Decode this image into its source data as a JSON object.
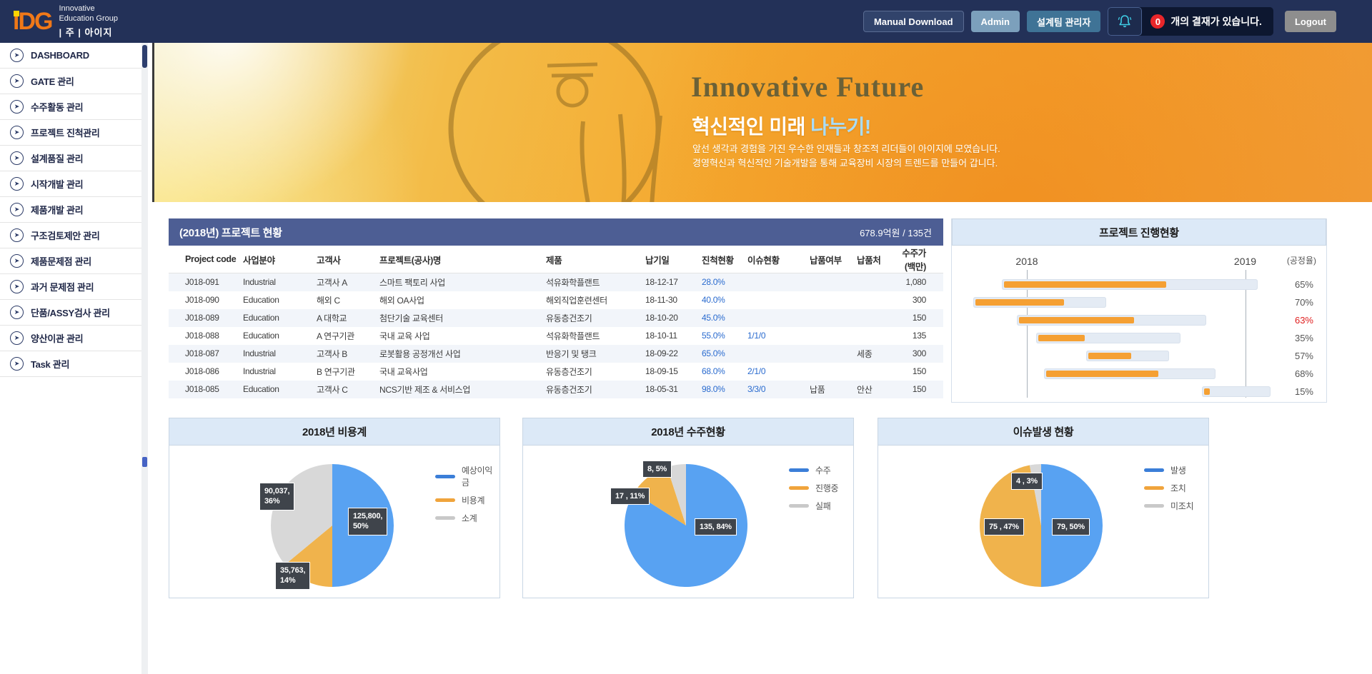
{
  "header": {
    "logo": {
      "text": "iDG",
      "sub1": "Innovative",
      "sub2": "Education Group",
      "sub3": "| 주 | 아이지"
    },
    "buttons": {
      "manual_download": "Manual Download",
      "admin": "Admin",
      "design_team": "설계팀 관리자",
      "logout": "Logout"
    },
    "notification": {
      "count": "0",
      "text": "개의 결재가 있습니다."
    }
  },
  "sidebar": {
    "items": [
      "DASHBOARD",
      "GATE 관리",
      "수주활동 관리",
      "프로젝트 진척관리",
      "설계품질 관리",
      "시작개발 관리",
      "제품개발 관리",
      "구조검토제안 관리",
      "제품문제점 관리",
      "과거 문제점 관리",
      "단품/ASSY검사 관리",
      "양산이관 관리",
      "Task 관리"
    ]
  },
  "banner": {
    "title": "Innovative Future",
    "subtitle_main": "혁신적인 미래 ",
    "subtitle_accent": "나누기!",
    "line1": "앞선 생각과 경험을 가진 우수한 인재들과 창조적 리더들이 아이지에 모였습니다.",
    "line2": "경영혁신과 혁신적인 기술개발을 통해 교육장비 시장의 트렌드를 만들어 갑니다."
  },
  "project_table": {
    "title": "(2018년) 프로젝트 현황",
    "summary": "678.9억원 / 135건",
    "columns": [
      "Project code",
      "사업분야",
      "고객사",
      "프로젝트(공사)명",
      "제품",
      "납기일",
      "진척현황",
      "이슈현황",
      "납품여부",
      "납품처",
      "수주가(백만)"
    ],
    "rows": [
      [
        "J018-091",
        "Industrial",
        "고객사 A",
        "스마트 팩토리 사업",
        "석유화학플랜트",
        "18-12-17",
        "28.0%",
        "",
        "",
        "",
        "1,080"
      ],
      [
        "J018-090",
        "Education",
        "해외 C",
        "해외 OA사업",
        "해외직업훈련센터",
        "18-11-30",
        "40.0%",
        "",
        "",
        "",
        "300"
      ],
      [
        "J018-089",
        "Education",
        "A 대학교",
        "첨단기술 교육센터",
        "유동층건조기",
        "18-10-20",
        "45.0%",
        "",
        "",
        "",
        "150"
      ],
      [
        "J018-088",
        "Education",
        "A 연구기관",
        "국내 교육 사업",
        "석유화학플랜트",
        "18-10-11",
        "55.0%",
        "1/1/0",
        "",
        "",
        "135"
      ],
      [
        "J018-087",
        "Industrial",
        "고객사 B",
        "로봇활용 공정개선 사업",
        "반응기 및 탱크",
        "18-09-22",
        "65.0%",
        "",
        "",
        "세종",
        "300"
      ],
      [
        "J018-086",
        "Industrial",
        "B 연구기관",
        "국내 교육사업",
        "유동층건조기",
        "18-09-15",
        "68.0%",
        "2/1/0",
        "",
        "",
        "150"
      ],
      [
        "J018-085",
        "Education",
        "고객사 C",
        "NCS기반 제조 & 서비스업",
        "유동층건조기",
        "18-05-31",
        "98.0%",
        "3/3/0",
        "납품",
        "안산",
        "150"
      ]
    ]
  },
  "colors": {
    "header_navy": "#233158",
    "table_header_bg": "#4d5e94",
    "panel_title_bg": "#dce9f7",
    "gantt_bar": "#f5a033",
    "gantt_track": "#e4ebf4",
    "progress_text_blue": "#2a6bcf",
    "alert_red": "#e02020",
    "pie_slices": [
      "#58a2f2",
      "#f0b34c",
      "#d8d8d8"
    ],
    "legend_marks": [
      "#3b7ed8",
      "#f0a43c",
      "#c9c9c9"
    ]
  },
  "chart_data": [
    {
      "type": "gantt",
      "title": "프로젝트 진행현황",
      "years": [
        "2018",
        "2019"
      ],
      "unit_label": "(공정율)",
      "year_positions_pct": [
        21.3,
        89.8
      ],
      "rows": [
        {
          "start_pct": 13.4,
          "span_pct": 80.4,
          "progress_pct": 65,
          "label": "65%",
          "alert": false
        },
        {
          "start_pct": 4.5,
          "span_pct": 41.7,
          "progress_pct": 70,
          "label": "70%",
          "alert": false
        },
        {
          "start_pct": 18.1,
          "span_pct": 59.4,
          "progress_pct": 63,
          "label": "63%",
          "alert": true
        },
        {
          "start_pct": 24.3,
          "span_pct": 45.3,
          "progress_pct": 35,
          "label": "35%",
          "alert": false
        },
        {
          "start_pct": 39.8,
          "span_pct": 26.2,
          "progress_pct": 57,
          "label": "57%",
          "alert": false
        },
        {
          "start_pct": 26.6,
          "span_pct": 54.0,
          "progress_pct": 68,
          "label": "68%",
          "alert": false
        },
        {
          "start_pct": 76.2,
          "span_pct": 21.5,
          "progress_pct": 15,
          "label": "15%",
          "alert": false
        }
      ]
    },
    {
      "type": "pie",
      "title": "2018년 비용계",
      "legend": [
        "예상이익금",
        "비용계",
        "소계"
      ],
      "slices": [
        {
          "name": "예상이익금",
          "value": 125800,
          "pct": 50,
          "label": "125,800,\n50%"
        },
        {
          "name": "비용계",
          "value": 35763,
          "pct": 14,
          "label": "35,763,\n14%"
        },
        {
          "name": "소계",
          "value": 90037,
          "pct": 36,
          "label": "90,037,\n36%"
        }
      ]
    },
    {
      "type": "pie",
      "title": "2018년 수주현황",
      "legend": [
        "수주",
        "진행중",
        "실패"
      ],
      "slices": [
        {
          "name": "수주",
          "value": 135,
          "pct": 84,
          "label": "135, 84%"
        },
        {
          "name": "진행중",
          "value": 17,
          "pct": 11,
          "label": "17 , 11%"
        },
        {
          "name": "실패",
          "value": 8,
          "pct": 5,
          "label": "8, 5%"
        }
      ]
    },
    {
      "type": "pie",
      "title": "이슈발생 현황",
      "legend": [
        "발생",
        "조치",
        "미조치"
      ],
      "slices": [
        {
          "name": "발생",
          "value": 79,
          "pct": 50,
          "label": "79, 50%"
        },
        {
          "name": "조치",
          "value": 75,
          "pct": 47,
          "label": "75 , 47%"
        },
        {
          "name": "미조치",
          "value": 4,
          "pct": 3,
          "label": "4 , 3%"
        }
      ]
    }
  ]
}
